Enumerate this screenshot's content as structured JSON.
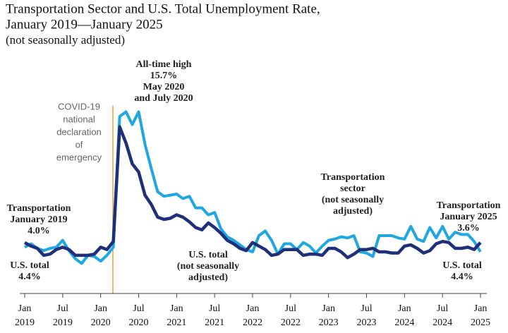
{
  "chart_data": {
    "type": "line",
    "title": [
      "Transportation Sector and U.S. Total Unemployment Rate,",
      "January 2019—January 2025",
      "(not seasonally adjusted)"
    ],
    "categories": [
      "Jan 2019",
      null,
      null,
      null,
      null,
      null,
      "Jul 2019",
      null,
      null,
      null,
      null,
      null,
      "Jan 2020",
      null,
      null,
      null,
      null,
      null,
      "Jul 2020",
      null,
      null,
      null,
      null,
      null,
      "Jan 2021",
      null,
      null,
      null,
      null,
      null,
      "Jul 2021",
      null,
      null,
      null,
      null,
      null,
      "Jan 2022",
      null,
      null,
      null,
      null,
      null,
      "Jul 2022",
      null,
      null,
      null,
      null,
      null,
      "Jan 2023",
      null,
      null,
      null,
      null,
      null,
      "Jul 2023",
      null,
      null,
      null,
      null,
      null,
      "Jan 2024",
      null,
      null,
      null,
      null,
      null,
      "Jul 2024",
      null,
      null,
      null,
      null,
      null,
      "Jan 2025"
    ],
    "series": [
      {
        "name": "Transportation sector",
        "color": "#1ea7e1",
        "values": [
          4.0,
          4.3,
          3.9,
          3.7,
          3.9,
          4.0,
          4.6,
          3.7,
          3.0,
          2.6,
          3.3,
          3.2,
          2.8,
          3.3,
          4.0,
          15.3,
          15.7,
          14.6,
          15.7,
          12.9,
          10.8,
          8.8,
          8.4,
          8.5,
          8.6,
          8.2,
          8.4,
          7.4,
          7.4,
          6.8,
          7.0,
          5.6,
          4.9,
          4.6,
          4.2,
          3.8,
          3.6,
          5.0,
          5.4,
          4.6,
          3.4,
          4.3,
          4.3,
          3.8,
          4.4,
          4.1,
          3.5,
          4.1,
          4.6,
          4.7,
          4.9,
          4.8,
          5.0,
          3.6,
          3.5,
          3.2,
          5.0,
          5.0,
          5.0,
          4.8,
          4.7,
          5.8,
          4.7,
          4.5,
          5.7,
          4.8,
          5.8,
          4.7,
          5.3,
          5.1,
          5.1,
          4.5,
          3.6
        ]
      },
      {
        "name": "U.S. total",
        "color": "#1f2f7a",
        "values": [
          4.4,
          4.1,
          3.9,
          3.3,
          3.4,
          3.8,
          4.0,
          3.8,
          3.3,
          3.3,
          3.3,
          3.4,
          4.0,
          3.8,
          4.5,
          14.4,
          13.0,
          11.2,
          10.5,
          8.5,
          7.7,
          6.6,
          6.4,
          6.5,
          6.8,
          6.6,
          6.2,
          5.7,
          5.5,
          6.1,
          5.7,
          5.2,
          4.6,
          4.3,
          3.9,
          3.7,
          4.4,
          4.1,
          3.8,
          3.3,
          3.4,
          3.8,
          3.8,
          3.8,
          3.3,
          3.4,
          3.4,
          3.3,
          3.9,
          3.9,
          3.6,
          3.1,
          3.4,
          3.8,
          3.8,
          3.9,
          3.6,
          3.6,
          3.5,
          3.5,
          4.1,
          4.2,
          3.9,
          3.5,
          3.7,
          4.3,
          4.5,
          4.4,
          3.9,
          3.9,
          4.0,
          3.8,
          4.4
        ]
      }
    ],
    "ylim": [
      0,
      20
    ],
    "annotations": [
      [
        "All-time high",
        "15.7%",
        "May 2020",
        "and July 2020"
      ],
      [
        "COVID-19",
        "national",
        "declaration",
        "of",
        "emergency"
      ],
      [
        "Transportation",
        "January 2019",
        "4.0%"
      ],
      [
        "U.S. total",
        "4.4%"
      ],
      [
        "U.S. total",
        "(not seasonally",
        "adjusted)"
      ],
      [
        "Transportation",
        "sector",
        "(not seasonally",
        "adjusted)"
      ],
      [
        "Transportation",
        "January 2025",
        "3.6%"
      ],
      [
        "U.S. total",
        "4.4%"
      ]
    ]
  }
}
